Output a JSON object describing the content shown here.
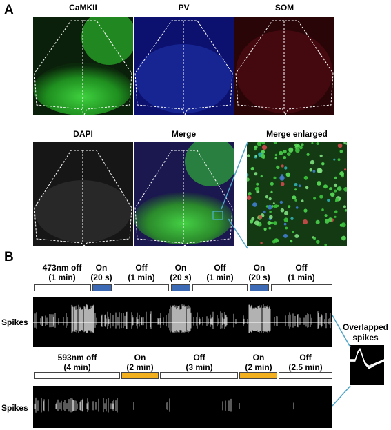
{
  "panel_a": {
    "letter": "A",
    "images": [
      {
        "title": "CaMKII",
        "color": "#1f8f1f"
      },
      {
        "title": "PV",
        "color": "#1a2a9c"
      },
      {
        "title": "SOM",
        "color": "#6a1018"
      },
      {
        "title": "DAPI",
        "color": "#2a2a2a"
      },
      {
        "title": "Merge",
        "color": "#2b8a2b"
      },
      {
        "title": "Merge enlarged",
        "color": "#1c5a1c"
      }
    ]
  },
  "panel_b": {
    "letter": "B",
    "protocol_473": {
      "segments": [
        {
          "label_line1": "473nm off",
          "label_line2": "(1 min)",
          "state": "off"
        },
        {
          "label_line1": "On",
          "label_line2": "(20 s)",
          "state": "on"
        },
        {
          "label_line1": "Off",
          "label_line2": "(1 min)",
          "state": "off"
        },
        {
          "label_line1": "On",
          "label_line2": "(20 s)",
          "state": "on"
        },
        {
          "label_line1": "Off",
          "label_line2": "(1 min)",
          "state": "off"
        },
        {
          "label_line1": "On",
          "label_line2": "(20 s)",
          "state": "on"
        },
        {
          "label_line1": "Off",
          "label_line2": "(1 min)",
          "state": "off"
        }
      ],
      "on_color": "#3c6ab4"
    },
    "protocol_593": {
      "segments": [
        {
          "label_line1": "593nm off",
          "label_line2": "(4 min)",
          "state": "off"
        },
        {
          "label_line1": "On",
          "label_line2": "(2 min)",
          "state": "on"
        },
        {
          "label_line1": "Off",
          "label_line2": "(3 min)",
          "state": "off"
        },
        {
          "label_line1": "On",
          "label_line2": "(2 min)",
          "state": "on"
        },
        {
          "label_line1": "Off",
          "label_line2": "(2.5 min)",
          "state": "off"
        }
      ],
      "on_color": "#f2b01e"
    },
    "spikes_label": "Spikes",
    "overlapped_line1": "Overlapped",
    "overlapped_line2": "spikes"
  }
}
